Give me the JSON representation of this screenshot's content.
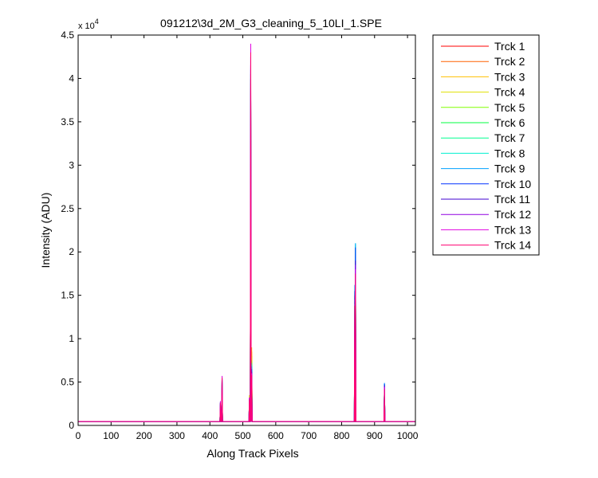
{
  "chart_data": {
    "type": "line",
    "title": "091212\\3d_2M_G3_cleaning_5_10LI_1.SPE",
    "xlabel": "Along Track Pixels",
    "ylabel": "Intensity (ADU)",
    "y_multiplier_label": "x 10",
    "y_multiplier_exponent": "4",
    "xlim": [
      0,
      1024
    ],
    "ylim": [
      0,
      4.5
    ],
    "xticks": [
      0,
      100,
      200,
      300,
      400,
      500,
      600,
      700,
      800,
      900,
      1000
    ],
    "yticks": [
      0,
      0.5,
      1,
      1.5,
      2,
      2.5,
      3,
      3.5,
      4,
      4.5
    ],
    "ytick_labels": [
      "0",
      "0.5",
      "1",
      "1.5",
      "2",
      "2.5",
      "3",
      "3.5",
      "4",
      "4.5"
    ],
    "grid": false,
    "legend_placement": "outside-right",
    "baseline": 0.045,
    "series": [
      {
        "name": "Trck 1",
        "color": "#ff0000",
        "peaks": [
          [
            432,
            0.2
          ],
          [
            437,
            0.45
          ],
          [
            520,
            0.25
          ],
          [
            524,
            3.9
          ],
          [
            527,
            0.8
          ],
          [
            840,
            1.4
          ],
          [
            842,
            1.9
          ],
          [
            930,
            0.45
          ]
        ]
      },
      {
        "name": "Trck 2",
        "color": "#ff6000",
        "peaks": [
          [
            432,
            0.22
          ],
          [
            437,
            0.47
          ],
          [
            520,
            0.26
          ],
          [
            524,
            3.95
          ],
          [
            527,
            0.85
          ],
          [
            840,
            1.45
          ],
          [
            842,
            1.95
          ],
          [
            930,
            0.44
          ]
        ]
      },
      {
        "name": "Trck 3",
        "color": "#ffc000",
        "peaks": [
          [
            432,
            0.25
          ],
          [
            437,
            0.5
          ],
          [
            520,
            0.3
          ],
          [
            524,
            4.0
          ],
          [
            527,
            0.9
          ],
          [
            840,
            1.5
          ],
          [
            842,
            2.0
          ],
          [
            930,
            0.46
          ]
        ]
      },
      {
        "name": "Trck 4",
        "color": "#e0e000",
        "peaks": [
          [
            432,
            0.23
          ],
          [
            437,
            0.48
          ],
          [
            520,
            0.35
          ],
          [
            524,
            3.98
          ],
          [
            527,
            0.8
          ],
          [
            840,
            1.5
          ],
          [
            842,
            2.02
          ],
          [
            930,
            0.45
          ]
        ]
      },
      {
        "name": "Trck 5",
        "color": "#80ff00",
        "peaks": [
          [
            432,
            0.24
          ],
          [
            437,
            0.5
          ],
          [
            520,
            0.3
          ],
          [
            524,
            4.0
          ],
          [
            527,
            0.75
          ],
          [
            840,
            1.55
          ],
          [
            842,
            2.05
          ],
          [
            930,
            0.46
          ]
        ]
      },
      {
        "name": "Trck 6",
        "color": "#00ff40",
        "peaks": [
          [
            432,
            0.25
          ],
          [
            437,
            0.52
          ],
          [
            520,
            0.28
          ],
          [
            524,
            4.05
          ],
          [
            527,
            0.7
          ],
          [
            840,
            1.55
          ],
          [
            842,
            2.06
          ],
          [
            930,
            0.47
          ]
        ]
      },
      {
        "name": "Trck 7",
        "color": "#00ff90",
        "peaks": [
          [
            432,
            0.26
          ],
          [
            437,
            0.53
          ],
          [
            520,
            0.3
          ],
          [
            524,
            4.05
          ],
          [
            527,
            0.72
          ],
          [
            840,
            1.6
          ],
          [
            842,
            2.08
          ],
          [
            930,
            0.47
          ]
        ]
      },
      {
        "name": "Trck 8",
        "color": "#00f0d0",
        "peaks": [
          [
            432,
            0.27
          ],
          [
            437,
            0.54
          ],
          [
            520,
            0.3
          ],
          [
            524,
            4.1
          ],
          [
            527,
            0.7
          ],
          [
            840,
            1.6
          ],
          [
            842,
            2.1
          ],
          [
            930,
            0.48
          ]
        ]
      },
      {
        "name": "Trck 9",
        "color": "#00a0ff",
        "peaks": [
          [
            432,
            0.27
          ],
          [
            437,
            0.55
          ],
          [
            520,
            0.31
          ],
          [
            524,
            4.12
          ],
          [
            527,
            0.68
          ],
          [
            840,
            1.62
          ],
          [
            842,
            2.1
          ],
          [
            930,
            0.49
          ]
        ]
      },
      {
        "name": "Trck 10",
        "color": "#0030ff",
        "peaks": [
          [
            432,
            0.26
          ],
          [
            437,
            0.54
          ],
          [
            520,
            0.3
          ],
          [
            524,
            3.99
          ],
          [
            527,
            0.65
          ],
          [
            840,
            1.55
          ],
          [
            842,
            2.05
          ],
          [
            930,
            0.48
          ]
        ]
      },
      {
        "name": "Trck 11",
        "color": "#4000d0",
        "peaks": [
          [
            432,
            0.26
          ],
          [
            437,
            0.55
          ],
          [
            520,
            0.3
          ],
          [
            524,
            4.15
          ],
          [
            527,
            0.62
          ],
          [
            840,
            1.5
          ],
          [
            842,
            1.9
          ],
          [
            930,
            0.46
          ]
        ]
      },
      {
        "name": "Trck 12",
        "color": "#9000e0",
        "peaks": [
          [
            432,
            0.27
          ],
          [
            437,
            0.56
          ],
          [
            520,
            0.32
          ],
          [
            524,
            4.25
          ],
          [
            527,
            0.6
          ],
          [
            840,
            1.45
          ],
          [
            842,
            1.85
          ],
          [
            930,
            0.45
          ]
        ]
      },
      {
        "name": "Trck 13",
        "color": "#e000e0",
        "peaks": [
          [
            432,
            0.28
          ],
          [
            437,
            0.57
          ],
          [
            520,
            0.32
          ],
          [
            524,
            4.4
          ],
          [
            527,
            0.6
          ],
          [
            840,
            1.4
          ],
          [
            842,
            1.8
          ],
          [
            930,
            0.44
          ]
        ]
      },
      {
        "name": "Trck 14",
        "color": "#ff0070",
        "peaks": [
          [
            432,
            0.26
          ],
          [
            437,
            0.55
          ],
          [
            520,
            0.3
          ],
          [
            524,
            4.3
          ],
          [
            527,
            0.58
          ],
          [
            840,
            1.38
          ],
          [
            842,
            1.75
          ],
          [
            930,
            0.42
          ]
        ]
      }
    ]
  }
}
